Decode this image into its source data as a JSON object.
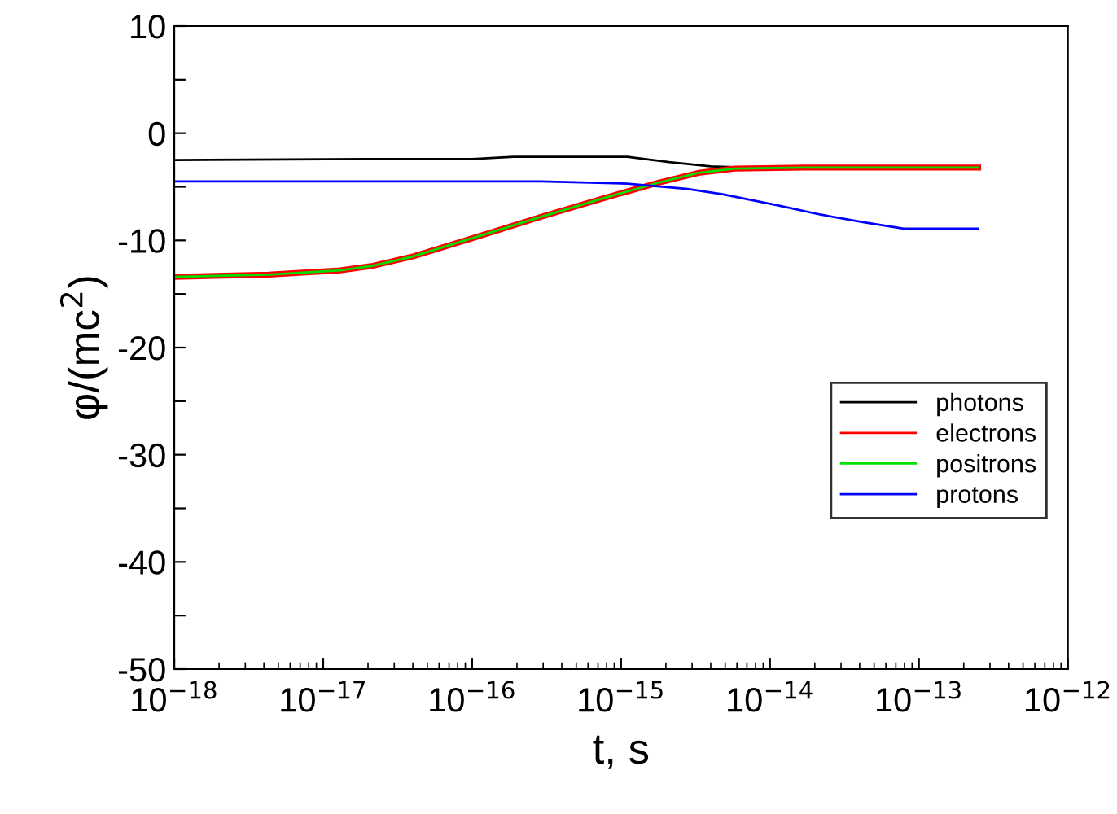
{
  "chart_data": {
    "type": "line",
    "xlabel": "t, s",
    "ylabel": "φ/(mc$^{2}$)",
    "log": "x",
    "grid": false,
    "legend": "right",
    "line_style": "solid",
    "marker": "none",
    "xlim": [
      1e-18,
      1e-12
    ],
    "xticks": [
      {
        "value": 1e-18,
        "label": "10$^{−18}$"
      },
      {
        "value": 1e-17,
        "label": "10$^{−17}$"
      },
      {
        "value": 1e-16,
        "label": "10$^{−16}$"
      },
      {
        "value": 1e-15,
        "label": "10$^{−15}$"
      },
      {
        "value": 1e-14,
        "label": "10$^{−14}$"
      },
      {
        "value": 1e-13,
        "label": "10$^{−13}$"
      },
      {
        "value": 1e-12,
        "label": "10$^{−12}$"
      }
    ],
    "ylim": [
      -50,
      10
    ],
    "yticks": [
      {
        "value": -50,
        "label": "-50"
      },
      {
        "value": -45,
        "label": null
      },
      {
        "value": -40,
        "label": "-40"
      },
      {
        "value": -35,
        "label": null
      },
      {
        "value": -30,
        "label": "-30"
      },
      {
        "value": -25,
        "label": null
      },
      {
        "value": -20,
        "label": "-20"
      },
      {
        "value": -15,
        "label": null
      },
      {
        "value": -10,
        "label": "-10"
      },
      {
        "value": -5,
        "label": null
      },
      0,
      {
        "value": 5,
        "label": null
      },
      10
    ],
    "series": [
      {
        "name": "photons",
        "color": "#000000",
        "x": [
          1e-18,
          1.95e-17,
          1e-16,
          1.9e-16,
          7.9e-16,
          1.1e-15,
          2.1e-15,
          4e-15,
          6.8e-15,
          2.5e-13
        ],
        "values": [
          -2.5,
          -2.4,
          -2.4,
          -2.2,
          -2.2,
          -2.2,
          -2.7,
          -3.1,
          -3.2,
          -3.2
        ]
      },
      {
        "name": "electrons",
        "color": "#ff0000",
        "x": [
          1e-18,
          4.3e-18,
          1.3e-17,
          2.1e-17,
          4e-17,
          1e-16,
          2.9e-16,
          7.9e-16,
          1.8e-15,
          3.3e-15,
          5.8e-15,
          1.7e-14,
          2.5e-13
        ],
        "values": [
          -13.4,
          -13.2,
          -12.8,
          -12.4,
          -11.5,
          -9.8,
          -7.8,
          -6.0,
          -4.6,
          -3.7,
          -3.3,
          -3.2,
          -3.2
        ]
      },
      {
        "name": "positrons",
        "color": "#00e000",
        "x": [
          1e-18,
          4.3e-18,
          1.3e-17,
          2.1e-17,
          4e-17,
          1e-16,
          2.9e-16,
          7.9e-16,
          1.8e-15,
          3.3e-15,
          5.8e-15,
          1.7e-14,
          2.5e-13
        ],
        "values": [
          -13.4,
          -13.2,
          -12.8,
          -12.4,
          -11.5,
          -9.8,
          -7.8,
          -6.0,
          -4.6,
          -3.7,
          -3.3,
          -3.2,
          -3.2
        ]
      },
      {
        "name": "protons",
        "color": "#0000ff",
        "x": [
          1e-18,
          2.9e-16,
          1.1e-15,
          2.8e-15,
          4.8e-15,
          1.1e-14,
          2.2e-14,
          4.2e-14,
          7.9e-14,
          2.5e-13
        ],
        "values": [
          -4.5,
          -4.5,
          -4.7,
          -5.2,
          -5.7,
          -6.7,
          -7.6,
          -8.3,
          -8.9,
          -8.9
        ]
      }
    ]
  }
}
